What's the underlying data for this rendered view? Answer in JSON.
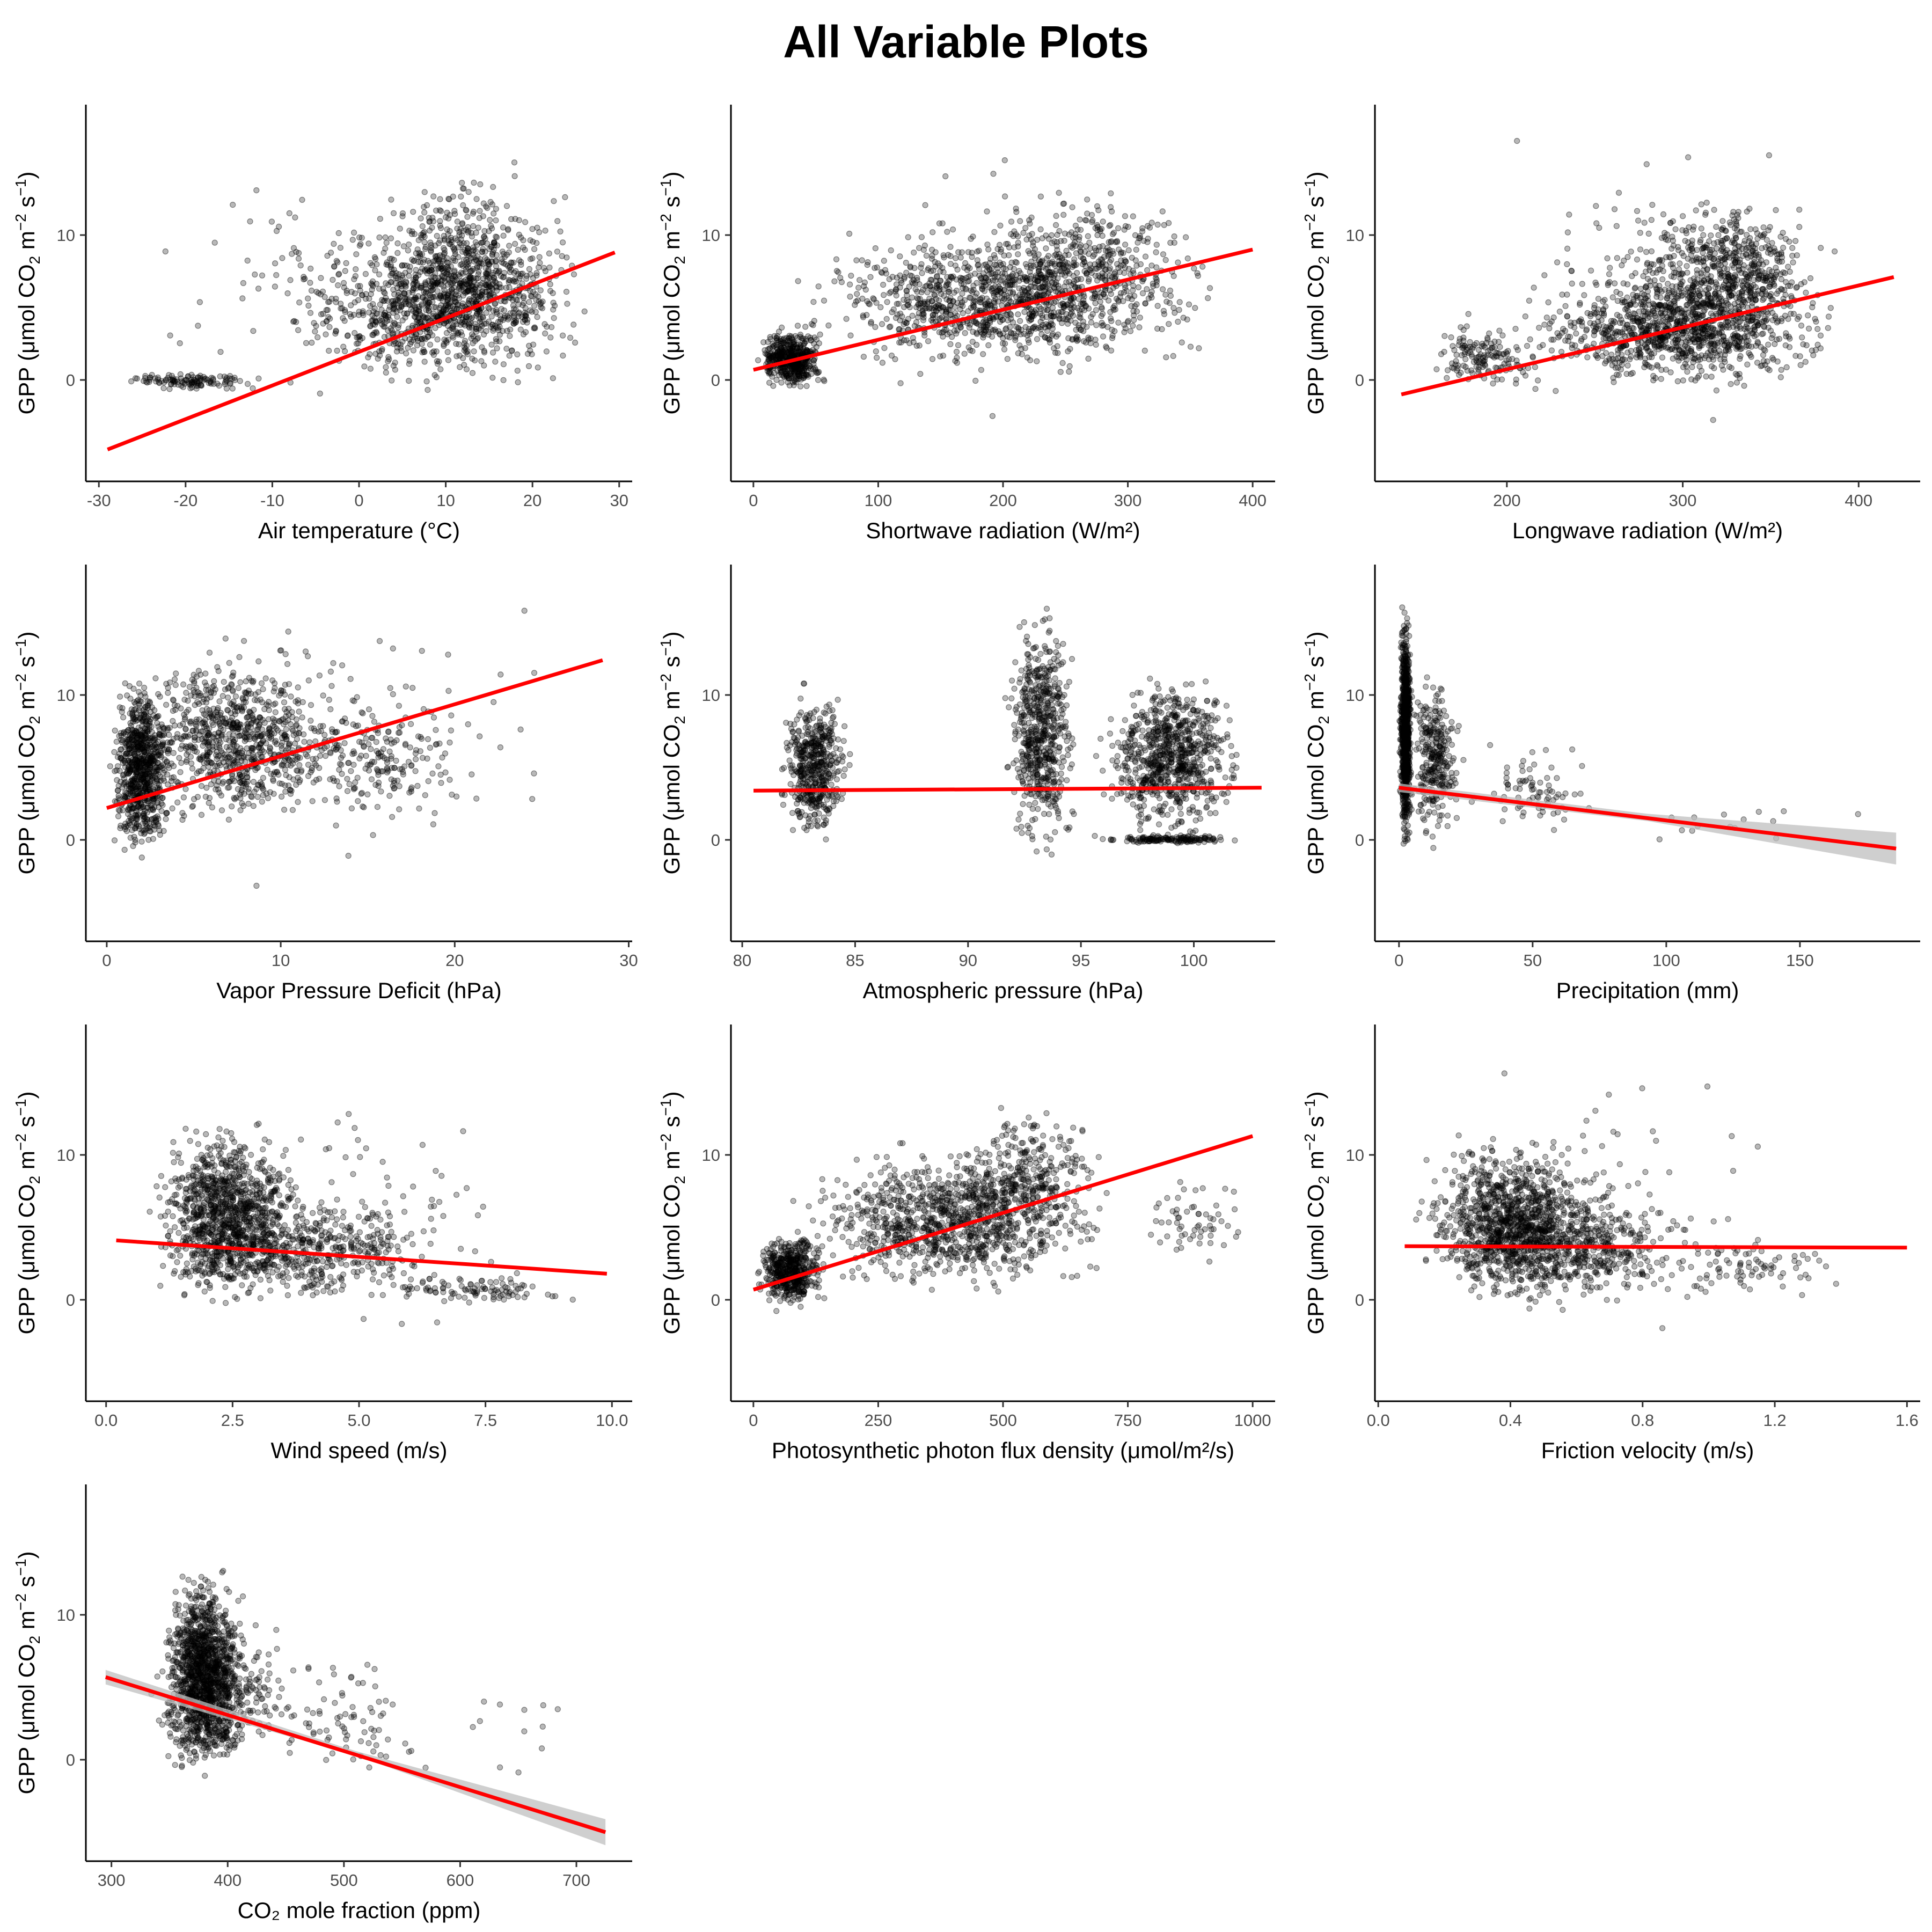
{
  "title": "All Variable Plots",
  "y_axis_label": {
    "base": "GPP (μmol CO",
    "sub": "2",
    "unit_m": " m",
    "sup_m": "−2",
    "unit_s": " s",
    "sup_s": "−1",
    "close": ")"
  },
  "colors": {
    "points": "#000000",
    "fit_line": "#ff0000",
    "confidence_band": "#bfbfbf"
  },
  "chart_data": [
    {
      "type": "scatter",
      "xlabel": "Air temperature (°C)",
      "xticks": [
        -30,
        -20,
        -10,
        0,
        10,
        20,
        30
      ],
      "tick_labels": [
        "-30",
        "-20",
        "-10",
        "0",
        "10",
        "20",
        "30"
      ],
      "xlim": [
        -31.5,
        31.5
      ],
      "yticks": [
        0,
        10
      ],
      "ylim": [
        -7,
        19
      ],
      "fit_line": {
        "x": [
          -29,
          29.5
        ],
        "y": [
          -4.8,
          8.8
        ]
      },
      "ci_band": false,
      "clusters": [
        {
          "xmin": -10,
          "xmax": 28,
          "ymin": -1,
          "ymax": 11,
          "n": 900
        },
        {
          "xmin": 0,
          "xmax": 26,
          "ymin": 1,
          "ymax": 15,
          "n": 500
        },
        {
          "xmin": -28,
          "xmax": -10,
          "ymin": -0.8,
          "ymax": 0.6,
          "n": 120
        },
        {
          "xmin": -30,
          "xmax": 29,
          "ymin": -4,
          "ymax": 17,
          "n": 120
        }
      ]
    },
    {
      "type": "scatter",
      "xlabel": "Shortwave radiation (W/m²)",
      "xticks": [
        0,
        100,
        200,
        300,
        400
      ],
      "tick_labels": [
        "0",
        "100",
        "200",
        "300",
        "400"
      ],
      "xlim": [
        -18,
        418
      ],
      "yticks": [
        0,
        10
      ],
      "ylim": [
        -7,
        19
      ],
      "fit_line": {
        "x": [
          0,
          400
        ],
        "y": [
          0.7,
          9.0
        ]
      },
      "ci_band": false,
      "clusters": [
        {
          "xmin": 0,
          "xmax": 60,
          "ymin": -1,
          "ymax": 4,
          "n": 500
        },
        {
          "xmin": 20,
          "xmax": 390,
          "ymin": 0,
          "ymax": 11,
          "n": 1100
        },
        {
          "xmin": 150,
          "xmax": 380,
          "ymin": 3,
          "ymax": 14,
          "n": 300
        },
        {
          "xmin": 0,
          "xmax": 400,
          "ymin": -4,
          "ymax": 18,
          "n": 100
        }
      ]
    },
    {
      "type": "scatter",
      "xlabel": "Longwave radiation (W/m²)",
      "xticks": [
        200,
        300,
        400
      ],
      "tick_labels": [
        "200",
        "300",
        "400"
      ],
      "xlim": [
        125,
        435
      ],
      "yticks": [
        0,
        10
      ],
      "ylim": [
        -7,
        19
      ],
      "fit_line": {
        "x": [
          140,
          420
        ],
        "y": [
          -1.0,
          7.1
        ]
      },
      "ci_band": false,
      "clusters": [
        {
          "xmin": 200,
          "xmax": 400,
          "ymin": -1,
          "ymax": 8,
          "n": 1000
        },
        {
          "xmin": 260,
          "xmax": 390,
          "ymin": 2,
          "ymax": 13,
          "n": 600
        },
        {
          "xmin": 150,
          "xmax": 230,
          "ymin": -1,
          "ymax": 4,
          "n": 150
        },
        {
          "xmin": 140,
          "xmax": 420,
          "ymin": -5,
          "ymax": 18,
          "n": 120
        }
      ]
    },
    {
      "type": "scatter",
      "xlabel": "Vapor Pressure Deficit (hPa)",
      "xticks": [
        0,
        10,
        20,
        30
      ],
      "tick_labels": [
        "0",
        "10",
        "20",
        "30"
      ],
      "xlim": [
        -1.2,
        30.2
      ],
      "yticks": [
        0,
        10
      ],
      "ylim": [
        -7,
        19
      ],
      "fit_line": {
        "x": [
          0,
          28.5
        ],
        "y": [
          2.2,
          12.4
        ]
      },
      "ci_band": false,
      "clusters": [
        {
          "xmin": 0,
          "xmax": 4,
          "ymin": -2,
          "ymax": 12,
          "n": 800
        },
        {
          "xmin": 1,
          "xmax": 14,
          "ymin": 0,
          "ymax": 14,
          "n": 800
        },
        {
          "xmin": 8,
          "xmax": 22,
          "ymin": 1,
          "ymax": 11,
          "n": 200
        },
        {
          "xmin": 0,
          "xmax": 28,
          "ymin": -4,
          "ymax": 18,
          "n": 100
        }
      ]
    },
    {
      "type": "scatter",
      "xlabel": "Atmospheric pressure (hPa)",
      "xticks": [
        80,
        85,
        90,
        95,
        100
      ],
      "tick_labels": [
        "80",
        "85",
        "90",
        "95",
        "100"
      ],
      "xlim": [
        79.5,
        103.6
      ],
      "yticks": [
        0,
        10
      ],
      "ylim": [
        -7,
        19
      ],
      "fit_line": {
        "x": [
          80.5,
          103
        ],
        "y": [
          3.4,
          3.6
        ]
      },
      "ci_band": false,
      "clusters": [
        {
          "xmin": 81.5,
          "xmax": 85,
          "ymin": -1,
          "ymax": 11,
          "n": 500
        },
        {
          "xmin": 91.5,
          "xmax": 95,
          "ymin": -2,
          "ymax": 17,
          "n": 600
        },
        {
          "xmin": 95.5,
          "xmax": 102.5,
          "ymin": -0.5,
          "ymax": 12,
          "n": 800
        },
        {
          "xmin": 95,
          "xmax": 103,
          "ymin": -0.3,
          "ymax": 0.4,
          "n": 150
        }
      ]
    },
    {
      "type": "scatter",
      "xlabel": "Precipitation (mm)",
      "xticks": [
        0,
        50,
        100,
        150
      ],
      "tick_labels": [
        "0",
        "50",
        "100",
        "150"
      ],
      "xlim": [
        -9,
        195
      ],
      "yticks": [
        0,
        10
      ],
      "ylim": [
        -7,
        19
      ],
      "fit_line": {
        "x": [
          0,
          186
        ],
        "y": [
          3.6,
          -0.6
        ]
      },
      "ci_band": {
        "x": [
          0,
          93,
          186
        ],
        "lower": [
          3.3,
          1.3,
          -1.7
        ],
        "upper": [
          3.9,
          1.8,
          0.5
        ]
      },
      "clusters": [
        {
          "xmin": 0,
          "xmax": 5,
          "ymin": -2,
          "ymax": 17,
          "n": 900
        },
        {
          "xmin": 3,
          "xmax": 25,
          "ymin": -1,
          "ymax": 12,
          "n": 300
        },
        {
          "xmin": 20,
          "xmax": 80,
          "ymin": 0,
          "ymax": 7,
          "n": 80
        },
        {
          "xmin": 80,
          "xmax": 185,
          "ymin": -1,
          "ymax": 3,
          "n": 15
        }
      ]
    },
    {
      "type": "scatter",
      "xlabel": "Wind speed (m/s)",
      "xticks": [
        0,
        2.5,
        5,
        7.5,
        10
      ],
      "tick_labels": [
        "0.0",
        "2.5",
        "5.0",
        "7.5",
        "10.0"
      ],
      "xlim": [
        -0.4,
        10.4
      ],
      "yticks": [
        0,
        10
      ],
      "ylim": [
        -7,
        19
      ],
      "fit_line": {
        "x": [
          0.2,
          9.9
        ],
        "y": [
          4.1,
          1.8
        ]
      },
      "ci_band": false,
      "clusters": [
        {
          "xmin": 0.7,
          "xmax": 4,
          "ymin": -1,
          "ymax": 13,
          "n": 1000
        },
        {
          "xmin": 1,
          "xmax": 7,
          "ymin": -1,
          "ymax": 8,
          "n": 500
        },
        {
          "xmin": 5,
          "xmax": 9.5,
          "ymin": -0.5,
          "ymax": 2,
          "n": 100
        },
        {
          "xmin": 0.5,
          "xmax": 9,
          "ymin": -4,
          "ymax": 17,
          "n": 100
        }
      ]
    },
    {
      "type": "scatter",
      "xlabel": "Photosynthetic photon flux density (μmol/m²/s)",
      "xticks": [
        0,
        250,
        500,
        750,
        1000
      ],
      "tick_labels": [
        "0",
        "250",
        "500",
        "750",
        "1000"
      ],
      "xlim": [
        -45,
        1045
      ],
      "yticks": [
        0,
        10
      ],
      "ylim": [
        -7,
        19
      ],
      "fit_line": {
        "x": [
          0,
          1000
        ],
        "y": [
          0.7,
          11.3
        ]
      },
      "ci_band": false,
      "clusters": [
        {
          "xmin": 0,
          "xmax": 150,
          "ymin": -1,
          "ymax": 5,
          "n": 500
        },
        {
          "xmin": 50,
          "xmax": 750,
          "ymin": 0,
          "ymax": 11,
          "n": 1000
        },
        {
          "xmin": 350,
          "xmax": 750,
          "ymin": 3,
          "ymax": 14,
          "n": 300
        },
        {
          "xmin": 750,
          "xmax": 1000,
          "ymin": 2,
          "ymax": 9,
          "n": 60
        }
      ]
    },
    {
      "type": "scatter",
      "xlabel": "Friction velocity (m/s)",
      "xticks": [
        0.0,
        0.4,
        0.8,
        1.2,
        1.6
      ],
      "tick_labels": [
        "0.0",
        "0.4",
        "0.8",
        "1.2",
        "1.6"
      ],
      "xlim": [
        -0.01,
        1.64
      ],
      "yticks": [
        0,
        10
      ],
      "ylim": [
        -7,
        19
      ],
      "fit_line": {
        "x": [
          0.08,
          1.6
        ],
        "y": [
          3.7,
          3.6
        ]
      },
      "ci_band": false,
      "clusters": [
        {
          "xmin": 0.1,
          "xmax": 0.7,
          "ymin": -1,
          "ymax": 12,
          "n": 1000
        },
        {
          "xmin": 0.2,
          "xmax": 1.0,
          "ymin": -1,
          "ymax": 8,
          "n": 500
        },
        {
          "xmin": 0.8,
          "xmax": 1.5,
          "ymin": -0.5,
          "ymax": 5,
          "n": 80
        },
        {
          "xmin": 0.1,
          "xmax": 1.3,
          "ymin": -4,
          "ymax": 17,
          "n": 100
        }
      ]
    },
    {
      "type": "scatter",
      "xlabel": "CO₂ mole fraction (ppm)",
      "xticks": [
        300,
        400,
        500,
        600,
        700
      ],
      "tick_labels": [
        "300",
        "400",
        "500",
        "600",
        "700"
      ],
      "xlim": [
        278,
        748
      ],
      "yticks": [
        0,
        10
      ],
      "ylim": [
        -7,
        19
      ],
      "fit_line": {
        "x": [
          295,
          725
        ],
        "y": [
          5.7,
          -5.0
        ]
      },
      "ci_band": {
        "x": [
          295,
          510,
          725
        ],
        "lower": [
          5.2,
          0.3,
          -5.9
        ],
        "upper": [
          6.2,
          0.6,
          -4.1
        ]
      },
      "clusters": [
        {
          "xmin": 340,
          "xmax": 420,
          "ymin": -2,
          "ymax": 14,
          "n": 1200
        },
        {
          "xmin": 320,
          "xmax": 470,
          "ymin": -1,
          "ymax": 10,
          "n": 300
        },
        {
          "xmin": 420,
          "xmax": 580,
          "ymin": -3,
          "ymax": 9,
          "n": 80
        },
        {
          "xmin": 580,
          "xmax": 725,
          "ymin": -2,
          "ymax": 7,
          "n": 12
        }
      ]
    }
  ]
}
